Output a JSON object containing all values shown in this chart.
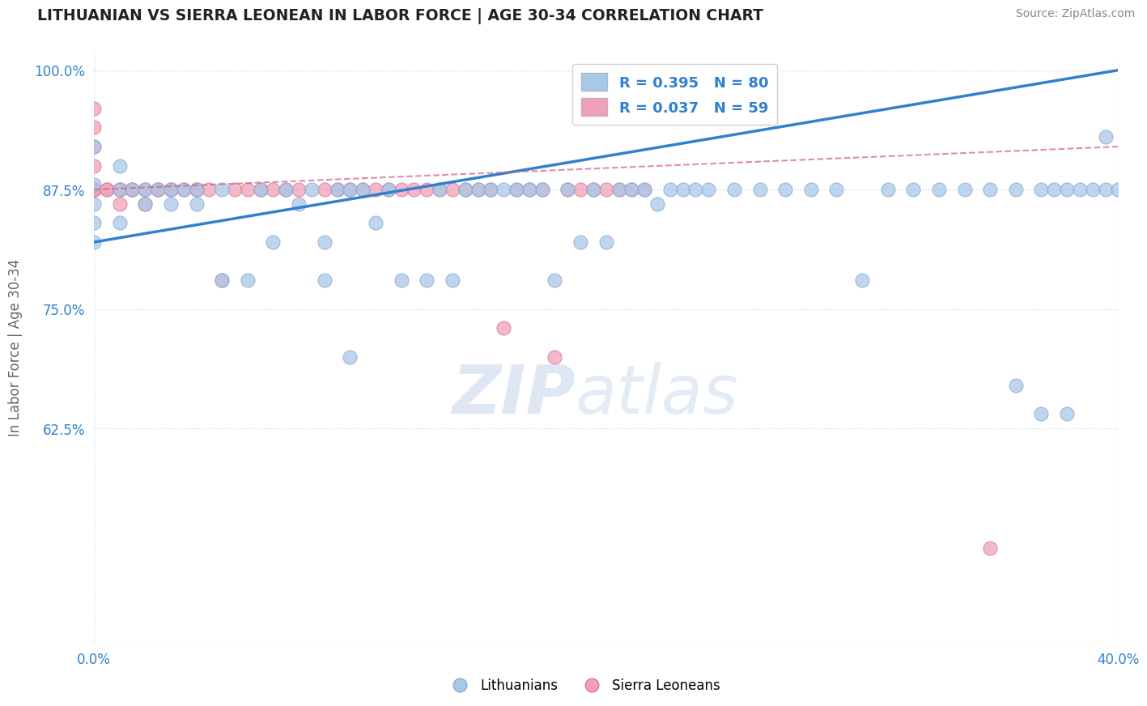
{
  "title": "LITHUANIAN VS SIERRA LEONEAN IN LABOR FORCE | AGE 30-34 CORRELATION CHART",
  "source": "Source: ZipAtlas.com",
  "ylabel": "In Labor Force | Age 30-34",
  "xmin": 0.0,
  "xmax": 0.4,
  "ymin": 0.4,
  "ymax": 1.02,
  "yticks": [
    1.0,
    0.875,
    0.75,
    0.625
  ],
  "ytick_labels": [
    "100.0%",
    "87.5%",
    "75.0%",
    "62.5%"
  ],
  "yline_ticks": [
    1.0,
    0.875,
    0.75,
    0.625,
    0.4
  ],
  "xticks": [
    0.0,
    0.1,
    0.2,
    0.3,
    0.4
  ],
  "xtick_labels": [
    "0.0%",
    "",
    "",
    "",
    "40.0%"
  ],
  "R_blue": 0.395,
  "N_blue": 80,
  "R_pink": 0.037,
  "N_pink": 59,
  "blue_color": "#a8c8e8",
  "pink_color": "#f0a0b8",
  "blue_edge_color": "#88a8d0",
  "pink_edge_color": "#d87898",
  "blue_line_color": "#3080d0",
  "pink_line_color": "#d06080",
  "grid_color": "#c8d8e8",
  "blue_scatter_x": [
    0.0,
    0.0,
    0.0,
    0.0,
    0.0,
    0.01,
    0.01,
    0.01,
    0.015,
    0.02,
    0.02,
    0.025,
    0.03,
    0.03,
    0.035,
    0.04,
    0.04,
    0.05,
    0.05,
    0.06,
    0.065,
    0.07,
    0.075,
    0.08,
    0.085,
    0.09,
    0.09,
    0.095,
    0.1,
    0.1,
    0.105,
    0.11,
    0.115,
    0.12,
    0.13,
    0.135,
    0.14,
    0.145,
    0.15,
    0.155,
    0.16,
    0.165,
    0.17,
    0.175,
    0.18,
    0.185,
    0.19,
    0.195,
    0.2,
    0.205,
    0.21,
    0.215,
    0.22,
    0.225,
    0.23,
    0.235,
    0.24,
    0.25,
    0.26,
    0.27,
    0.28,
    0.29,
    0.3,
    0.31,
    0.32,
    0.33,
    0.34,
    0.35,
    0.36,
    0.37,
    0.375,
    0.38,
    0.385,
    0.39,
    0.395,
    0.4,
    0.395,
    0.38,
    0.37,
    0.36
  ],
  "blue_scatter_y": [
    0.82,
    0.84,
    0.86,
    0.88,
    0.92,
    0.84,
    0.875,
    0.9,
    0.875,
    0.875,
    0.86,
    0.875,
    0.875,
    0.86,
    0.875,
    0.875,
    0.86,
    0.78,
    0.875,
    0.78,
    0.875,
    0.82,
    0.875,
    0.86,
    0.875,
    0.78,
    0.82,
    0.875,
    0.7,
    0.875,
    0.875,
    0.84,
    0.875,
    0.78,
    0.78,
    0.875,
    0.78,
    0.875,
    0.875,
    0.875,
    0.875,
    0.875,
    0.875,
    0.875,
    0.78,
    0.875,
    0.82,
    0.875,
    0.82,
    0.875,
    0.875,
    0.875,
    0.86,
    0.875,
    0.875,
    0.875,
    0.875,
    0.875,
    0.875,
    0.875,
    0.875,
    0.875,
    0.78,
    0.875,
    0.875,
    0.875,
    0.875,
    0.875,
    0.875,
    0.875,
    0.875,
    0.875,
    0.875,
    0.875,
    0.875,
    0.875,
    0.93,
    0.64,
    0.64,
    0.67
  ],
  "pink_scatter_x": [
    0.0,
    0.0,
    0.0,
    0.0,
    0.0,
    0.0,
    0.0,
    0.0,
    0.005,
    0.005,
    0.01,
    0.01,
    0.01,
    0.015,
    0.015,
    0.02,
    0.02,
    0.025,
    0.025,
    0.03,
    0.03,
    0.035,
    0.04,
    0.04,
    0.045,
    0.05,
    0.055,
    0.06,
    0.065,
    0.07,
    0.075,
    0.08,
    0.09,
    0.095,
    0.1,
    0.105,
    0.11,
    0.115,
    0.12,
    0.125,
    0.13,
    0.135,
    0.14,
    0.145,
    0.15,
    0.155,
    0.16,
    0.165,
    0.17,
    0.175,
    0.18,
    0.185,
    0.19,
    0.195,
    0.2,
    0.205,
    0.21,
    0.215,
    0.35
  ],
  "pink_scatter_y": [
    0.875,
    0.875,
    0.875,
    0.875,
    0.9,
    0.92,
    0.94,
    0.96,
    0.875,
    0.875,
    0.875,
    0.875,
    0.86,
    0.875,
    0.875,
    0.875,
    0.86,
    0.875,
    0.875,
    0.875,
    0.875,
    0.875,
    0.875,
    0.875,
    0.875,
    0.78,
    0.875,
    0.875,
    0.875,
    0.875,
    0.875,
    0.875,
    0.875,
    0.875,
    0.875,
    0.875,
    0.875,
    0.875,
    0.875,
    0.875,
    0.875,
    0.875,
    0.875,
    0.875,
    0.875,
    0.875,
    0.73,
    0.875,
    0.875,
    0.875,
    0.7,
    0.875,
    0.875,
    0.875,
    0.875,
    0.875,
    0.875,
    0.875,
    0.5
  ],
  "blue_line_x0": 0.0,
  "blue_line_y0": 0.82,
  "blue_line_x1": 0.4,
  "blue_line_y1": 1.0,
  "pink_line_x0": 0.0,
  "pink_line_y0": 0.875,
  "pink_line_x1": 0.4,
  "pink_line_y1": 0.92
}
